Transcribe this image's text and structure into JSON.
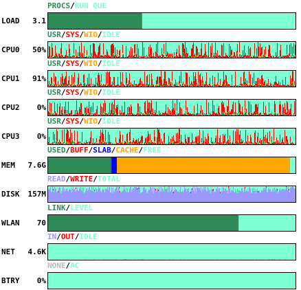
{
  "colors": {
    "background": "#7fffd4",
    "used_green": "#2e8b57",
    "usr": "#2e8b57",
    "sys": "#ff0000",
    "wio": "#ffa500",
    "idle": "#7fffd4",
    "buff": "#ff0000",
    "slab": "#0000ff",
    "cache": "#ffa500",
    "read": "#9999ff",
    "write": "#ff0000",
    "in": "#9999ff",
    "out": "#ff0000",
    "none": "#bbbbbb"
  },
  "load": {
    "name": "LOAD",
    "value": "3.1",
    "legend": [
      {
        "text": "PROCS",
        "color": "#2e8b57"
      },
      {
        "text": "/",
        "color": "#000000"
      },
      {
        "text": "RUN QUE",
        "color": "#7fffd4"
      }
    ],
    "fill_fraction": 0.38
  },
  "cpus": [
    {
      "name": "CPU0",
      "value": "50%"
    },
    {
      "name": "CPU1",
      "value": "91%"
    },
    {
      "name": "CPU2",
      "value": "0%"
    },
    {
      "name": "CPU3",
      "value": "0%"
    }
  ],
  "cpu_legend": [
    {
      "text": "USR",
      "color": "#2e8b57"
    },
    {
      "text": "/",
      "color": "#000000"
    },
    {
      "text": "SYS",
      "color": "#ff0000"
    },
    {
      "text": "/",
      "color": "#000000"
    },
    {
      "text": "WIO",
      "color": "#ffa500"
    },
    {
      "text": "/",
      "color": "#000000"
    },
    {
      "text": "IDLE",
      "color": "#7fffd4"
    }
  ],
  "mem": {
    "name": "MEM",
    "value": "7.6G",
    "legend": [
      {
        "text": "USED",
        "color": "#2e8b57"
      },
      {
        "text": "/",
        "color": "#000000"
      },
      {
        "text": "BUFF",
        "color": "#ff0000"
      },
      {
        "text": "/",
        "color": "#000000"
      },
      {
        "text": "SLAB",
        "color": "#0000ff"
      },
      {
        "text": "/",
        "color": "#000000"
      },
      {
        "text": "CACHE",
        "color": "#ffa500"
      },
      {
        "text": "/",
        "color": "#000000"
      },
      {
        "text": "FREE",
        "color": "#7fffd4"
      }
    ],
    "fractions": {
      "used": 0.254,
      "buff": 0.002,
      "slab": 0.022,
      "cache": 0.7,
      "free": 0.022
    }
  },
  "disk": {
    "name": "DISK",
    "value": "157M",
    "legend": [
      {
        "text": "READ",
        "color": "#9999ff"
      },
      {
        "text": "/",
        "color": "#000000"
      },
      {
        "text": "WRITE",
        "color": "#ff0000"
      },
      {
        "text": "/",
        "color": "#000000"
      },
      {
        "text": "TOTAL",
        "color": "#7fffd4"
      }
    ]
  },
  "wlan": {
    "name": "WLAN",
    "value": "70",
    "legend": [
      {
        "text": "LINK",
        "color": "#2e8b57"
      },
      {
        "text": "/",
        "color": "#000000"
      },
      {
        "text": "LEVEL",
        "color": "#7fffd4"
      }
    ],
    "fill_fraction": 0.77
  },
  "net": {
    "name": "NET",
    "value": "4.6K",
    "legend": [
      {
        "text": "IN",
        "color": "#9999ff"
      },
      {
        "text": "/",
        "color": "#000000"
      },
      {
        "text": "OUT",
        "color": "#ff0000"
      },
      {
        "text": "/",
        "color": "#000000"
      },
      {
        "text": "IDLE",
        "color": "#7fffd4"
      }
    ]
  },
  "btry": {
    "name": "BTRY",
    "value": "0%",
    "legend": [
      {
        "text": "NONE",
        "color": "#bbbbbb"
      },
      {
        "text": "/",
        "color": "#000000"
      },
      {
        "text": "AC",
        "color": "#7fffd4"
      }
    ]
  }
}
